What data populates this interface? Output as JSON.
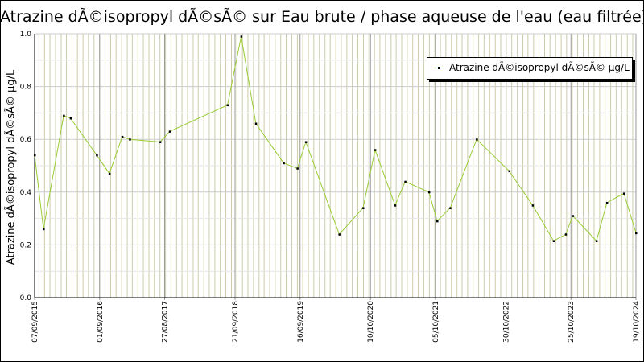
{
  "chart_data": {
    "type": "line",
    "title": "Atrazine dÃ©isopropyl dÃ©sÃ© sur Eau brute / phase aqueuse de l'eau (eau filtrée)",
    "xlabel": "",
    "ylabel": "Atrazine dÃ©isopropyl dÃ©sÃ© µg/L",
    "ylim": [
      0,
      1
    ],
    "yticks": [
      "0.0",
      "0.2",
      "0.4",
      "0.6",
      "0.8",
      "1.0"
    ],
    "xlim": [
      "2015-09-07",
      "2024-10-19"
    ],
    "xtick_labels": [
      {
        "label": "07/09/2015",
        "date": "2015-09-07"
      },
      {
        "label": "01/09/2016",
        "date": "2016-09-01"
      },
      {
        "label": "27/08/2017",
        "date": "2017-08-27"
      },
      {
        "label": "21/09/2018",
        "date": "2018-09-21"
      },
      {
        "label": "16/09/2019",
        "date": "2019-09-16"
      },
      {
        "label": "10/10/2020",
        "date": "2020-10-10"
      },
      {
        "label": "05/10/2021",
        "date": "2021-10-05"
      },
      {
        "label": "30/10/2022",
        "date": "2022-10-30"
      },
      {
        "label": "25/10/2023",
        "date": "2023-10-25"
      },
      {
        "label": "19/10/2024",
        "date": "2024-10-19"
      }
    ],
    "grid": true,
    "legend_position": "top-right",
    "colors": {
      "line": "#99cc33",
      "marker": "#000000",
      "grid": "#cccccc",
      "minor_grid": "#ccccaa"
    },
    "series": [
      {
        "name": "Atrazine dÃ©isopropyl dÃ©sÃ© µg/L",
        "points": [
          {
            "x": "2015-09-07",
            "y": 0.54
          },
          {
            "x": "2015-10-26",
            "y": 0.26
          },
          {
            "x": "2016-02-15",
            "y": 0.69
          },
          {
            "x": "2016-03-24",
            "y": 0.68
          },
          {
            "x": "2016-08-16",
            "y": 0.54
          },
          {
            "x": "2016-10-25",
            "y": 0.47
          },
          {
            "x": "2017-01-04",
            "y": 0.61
          },
          {
            "x": "2017-02-15",
            "y": 0.6
          },
          {
            "x": "2017-08-02",
            "y": 0.59
          },
          {
            "x": "2017-09-24",
            "y": 0.63
          },
          {
            "x": "2018-08-10",
            "y": 0.73
          },
          {
            "x": "2018-10-25",
            "y": 0.99
          },
          {
            "x": "2019-01-14",
            "y": 0.66
          },
          {
            "x": "2019-06-17",
            "y": 0.51
          },
          {
            "x": "2019-09-01",
            "y": 0.49
          },
          {
            "x": "2019-10-18",
            "y": 0.59
          },
          {
            "x": "2020-04-20",
            "y": 0.24
          },
          {
            "x": "2020-08-30",
            "y": 0.34
          },
          {
            "x": "2020-11-04",
            "y": 0.56
          },
          {
            "x": "2021-02-23",
            "y": 0.35
          },
          {
            "x": "2021-04-20",
            "y": 0.44
          },
          {
            "x": "2021-08-30",
            "y": 0.4
          },
          {
            "x": "2021-10-14",
            "y": 0.29
          },
          {
            "x": "2021-12-25",
            "y": 0.34
          },
          {
            "x": "2022-05-21",
            "y": 0.6
          },
          {
            "x": "2022-11-17",
            "y": 0.48
          },
          {
            "x": "2023-03-27",
            "y": 0.35
          },
          {
            "x": "2023-07-21",
            "y": 0.215
          },
          {
            "x": "2023-09-26",
            "y": 0.24
          },
          {
            "x": "2023-11-04",
            "y": 0.31
          },
          {
            "x": "2024-03-14",
            "y": 0.215
          },
          {
            "x": "2024-05-11",
            "y": 0.36
          },
          {
            "x": "2024-08-13",
            "y": 0.395
          },
          {
            "x": "2024-10-19",
            "y": 0.245
          }
        ]
      }
    ]
  }
}
